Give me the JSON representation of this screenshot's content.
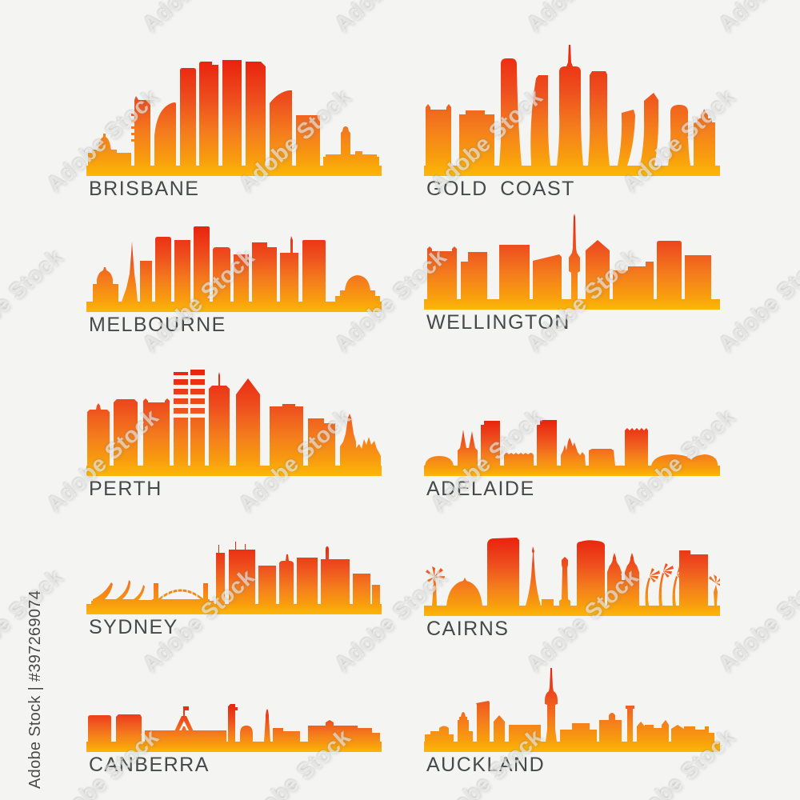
{
  "image": {
    "background_color": "#f4f4f2"
  },
  "watermark": {
    "tile_text": "Adobe Stock",
    "credit_text": "Adobe Stock | #397269074"
  },
  "palette": {
    "label_color": "#46494b",
    "credit_color": "#4a4a4a"
  },
  "gradient": {
    "red": "#e9220e",
    "red_orange": "#ee4f1e",
    "orange": "#f47b1d",
    "amber": "#f89c0e",
    "gold": "#fcb707"
  },
  "cities": [
    {
      "id": "brisbane",
      "label": "BRISBANE"
    },
    {
      "id": "gold-coast",
      "label": "GOLD COAST"
    },
    {
      "id": "melbourne",
      "label": "MELBOURNE"
    },
    {
      "id": "wellington",
      "label": "WELLINGTON"
    },
    {
      "id": "perth",
      "label": "PERTH"
    },
    {
      "id": "adelaide",
      "label": "ADELAIDE"
    },
    {
      "id": "sydney",
      "label": "SYDNEY"
    },
    {
      "id": "cairns",
      "label": "CAIRNS"
    },
    {
      "id": "canberra",
      "label": "CANBERRA"
    },
    {
      "id": "auckland",
      "label": "AUCKLAND"
    }
  ]
}
